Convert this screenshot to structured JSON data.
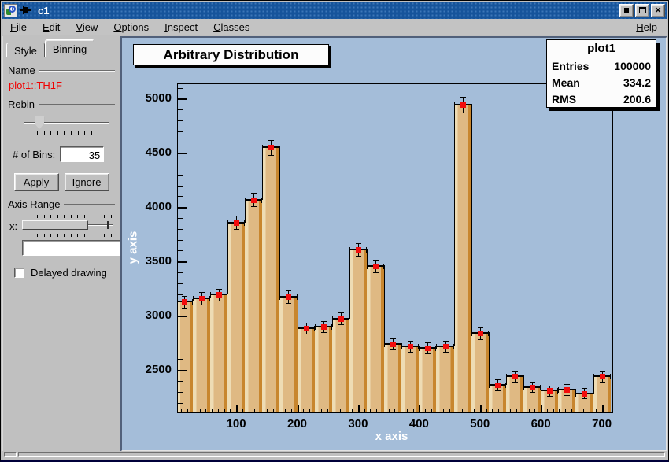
{
  "window": {
    "title": "c1",
    "buttons": {
      "minimize": "minimize",
      "maximize": "maximize",
      "close": "close"
    }
  },
  "menu": {
    "items": [
      "File",
      "Edit",
      "View",
      "Options",
      "Inspect",
      "Classes"
    ],
    "right_item": "Help"
  },
  "panel": {
    "tabs": [
      {
        "label": "Style",
        "active": false
      },
      {
        "label": "Binning",
        "active": true
      }
    ],
    "name_group": {
      "label": "Name",
      "value": "plot1::TH1F",
      "value_color": "#f00000"
    },
    "rebin_group": {
      "label": "Rebin",
      "slider_position": 0.13,
      "tick_count": 13
    },
    "bins_field": {
      "label": "# of Bins:",
      "value": "35"
    },
    "buttons": {
      "apply": "Apply",
      "ignore": "Ignore"
    },
    "axis_range_group": {
      "label": "Axis Range",
      "axis_label": "x:",
      "range_start": 0.0,
      "range_end": 0.72,
      "stub_position": 0.93,
      "tick_count": 14,
      "min_value": "3.00",
      "max_value": "717.29"
    },
    "delayed_drawing": {
      "label": "Delayed drawing",
      "checked": false
    }
  },
  "chart_data": {
    "type": "bar",
    "title": "Arbitrary Distribution",
    "xlabel": "x axis",
    "ylabel": "y axis",
    "xlim": [
      3,
      717.29
    ],
    "ylim": [
      2110,
      5140
    ],
    "bin_start": 0,
    "bin_width": 28.5714,
    "values": [
      3130,
      3160,
      3195,
      3860,
      4070,
      4550,
      3175,
      2885,
      2900,
      2975,
      3610,
      3460,
      2740,
      2720,
      2705,
      2720,
      4945,
      2840,
      2365,
      2440,
      2345,
      2310,
      2320,
      2285,
      2440
    ],
    "errors": "sqrt(value)",
    "xticks": [
      100,
      200,
      300,
      400,
      500,
      600,
      700
    ],
    "yticks": [
      2500,
      3000,
      3500,
      4000,
      4500,
      5000
    ],
    "x_minor_step": 10,
    "y_minor_step": 100,
    "grid": false,
    "legend": "none",
    "stats": {
      "title": "plot1",
      "rows": [
        [
          "Entries",
          "100000"
        ],
        [
          "Mean",
          "334.2"
        ],
        [
          "RMS",
          "200.6"
        ]
      ]
    }
  },
  "colors": {
    "canvas_bg": "#a4bdd9",
    "titlebar": "#16549b",
    "chrome": "#c0c0c0",
    "bar_light": "#eedcb4",
    "bar_body": "#dfb983",
    "bar_dark": "#c8862e",
    "marker": "#f20c0c",
    "axis_title_text": "#ffffff"
  }
}
